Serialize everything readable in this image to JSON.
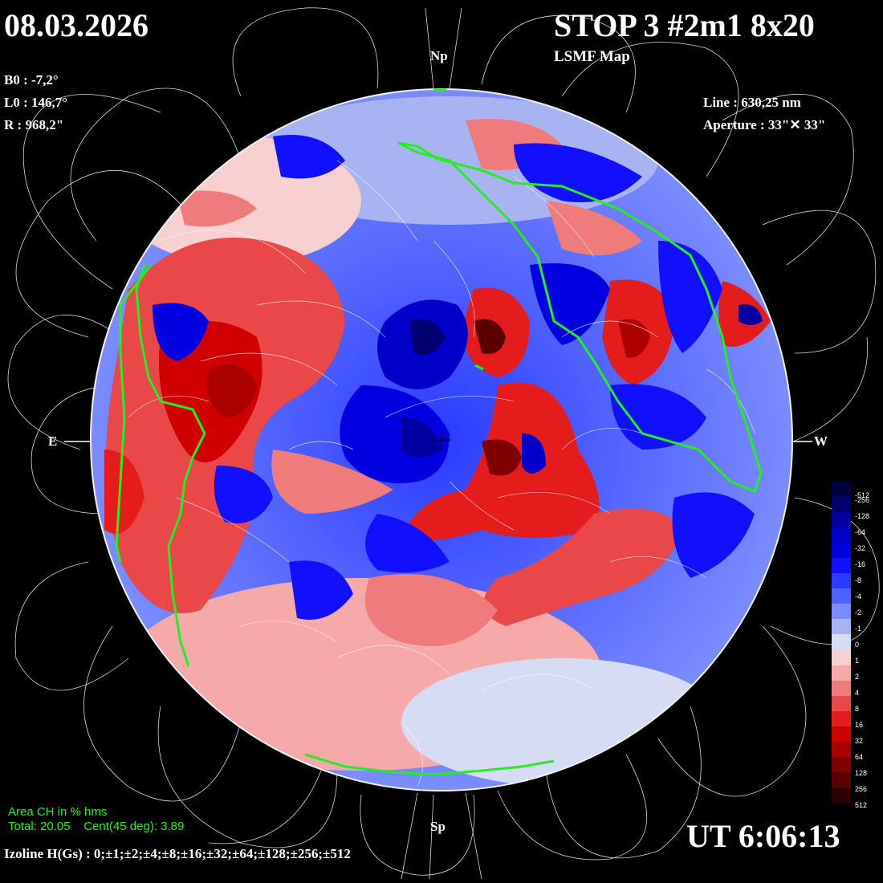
{
  "header": {
    "date": "08.03.2026",
    "title": "STOP 3 #2m1 8x20",
    "subtitle": "LSMF  Map"
  },
  "params": {
    "b0": "B0 : -7,2°",
    "l0": "L0 : 146,7°",
    "r": "R  : 968,2\"",
    "line": "Line :  630,25 nm",
    "aperture": "Aperture : 33\"✕ 33\""
  },
  "orientation": {
    "north": "Np",
    "south": "Sp",
    "east": "E",
    "west": "W"
  },
  "area": {
    "title": "Area CH in % hms",
    "total": "Total: 20.05    Cent(45 deg): 3.89"
  },
  "footer": {
    "isolines": "Izoline H(Gs) : 0;±1;±2;±4;±8;±16;±32;±64;±128;±256;±512",
    "time": "UT 6:06:13"
  },
  "colors": {
    "background": "#000000",
    "positive": "#e02020",
    "negative": "#1515d0",
    "coronal_hole": "#22ee22",
    "field_lines": "#ffffff"
  },
  "scale": {
    "labels": [
      "-512",
      "-256",
      "-128",
      "-64",
      "-32",
      "-16",
      "-8",
      "-4",
      "-2",
      "-1",
      "0",
      "1",
      "2",
      "4",
      "8",
      "16",
      "32",
      "64",
      "128",
      "256",
      "512"
    ],
    "colors": [
      "#000040",
      "#000070",
      "#0000a0",
      "#0000c8",
      "#0000e0",
      "#1010ff",
      "#2a3cff",
      "#4d63ff",
      "#7a8cff",
      "#a8b4f2",
      "#d6dcf4",
      "#f8d0d0",
      "#f5a9a9",
      "#f07b7b",
      "#ea4848",
      "#e51c1c",
      "#d00000",
      "#aa0000",
      "#800000",
      "#5a0000",
      "#300000"
    ]
  }
}
